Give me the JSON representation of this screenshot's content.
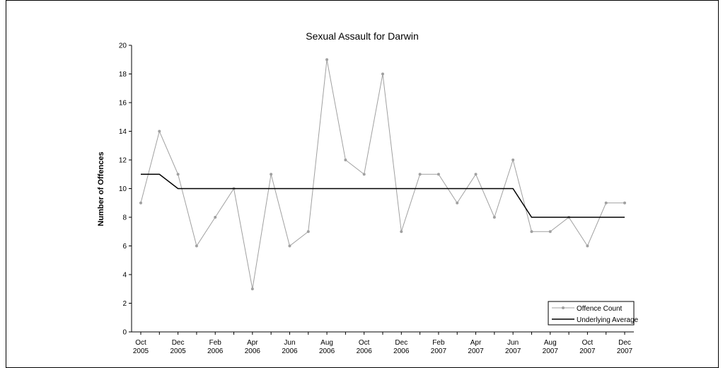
{
  "chart_data": {
    "type": "line",
    "title": "Sexual Assault for Darwin",
    "xlabel": "",
    "ylabel": "Number of Offences",
    "ylim": [
      0,
      20
    ],
    "yticks": [
      "0",
      "2",
      "4",
      "6",
      "8",
      "10",
      "12",
      "14",
      "16",
      "18",
      "20"
    ],
    "x": [
      "Oct 2005",
      "Nov 2005",
      "Dec 2005",
      "Jan 2006",
      "Feb 2006",
      "Mar 2006",
      "Apr 2006",
      "May 2006",
      "Jun 2006",
      "Jul 2006",
      "Aug 2006",
      "Sep 2006",
      "Oct 2006",
      "Nov 2006",
      "Dec 2006",
      "Jan 2007",
      "Feb 2007",
      "Mar 2007",
      "Apr 2007",
      "May 2007",
      "Jun 2007",
      "Jul 2007",
      "Aug 2007",
      "Sep 2007",
      "Oct 2007",
      "Nov 2007",
      "Dec 2007"
    ],
    "xtick_labels": [
      {
        "month": "Oct",
        "year": "2005"
      },
      {
        "month": "Dec",
        "year": "2005"
      },
      {
        "month": "Feb",
        "year": "2006"
      },
      {
        "month": "Apr",
        "year": "2006"
      },
      {
        "month": "Jun",
        "year": "2006"
      },
      {
        "month": "Aug",
        "year": "2006"
      },
      {
        "month": "Oct",
        "year": "2006"
      },
      {
        "month": "Dec",
        "year": "2006"
      },
      {
        "month": "Feb",
        "year": "2007"
      },
      {
        "month": "Apr",
        "year": "2007"
      },
      {
        "month": "Jun",
        "year": "2007"
      },
      {
        "month": "Aug",
        "year": "2007"
      },
      {
        "month": "Oct",
        "year": "2007"
      },
      {
        "month": "Dec",
        "year": "2007"
      }
    ],
    "series": [
      {
        "name": "Offence Count",
        "color": "#a0a0a0",
        "marker": "circle",
        "values": [
          9,
          14,
          11,
          6,
          8,
          10,
          3,
          11,
          6,
          7,
          19,
          12,
          11,
          18,
          7,
          11,
          11,
          9,
          11,
          8,
          12,
          7,
          7,
          8,
          6,
          9,
          9
        ]
      },
      {
        "name": "Underlying Average",
        "color": "#000000",
        "marker": "none",
        "values": [
          11,
          11,
          10,
          10,
          10,
          10,
          10,
          10,
          10,
          10,
          10,
          10,
          10,
          10,
          10,
          10,
          10,
          10,
          10,
          10,
          10,
          8,
          8,
          8,
          8,
          8,
          8
        ]
      }
    ],
    "grid": false,
    "legend_position": "bottom-right"
  }
}
